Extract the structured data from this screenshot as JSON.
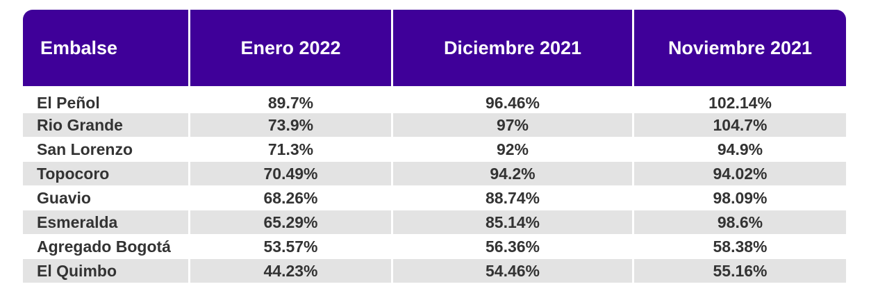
{
  "chart_data": {
    "type": "table",
    "columns": [
      "Embalse",
      "Enero 2022",
      "Diciembre 2021",
      "Noviembre 2021"
    ],
    "rows": [
      [
        "El Peñol",
        "89.7%",
        "96.46%",
        "102.14%"
      ],
      [
        "Rio Grande",
        "73.9%",
        "97%",
        "104.7%"
      ],
      [
        "San Lorenzo",
        "71.3%",
        "92%",
        "94.9%"
      ],
      [
        "Topocoro",
        "70.49%",
        "94.2%",
        "94.02%"
      ],
      [
        "Guavio",
        "68.26%",
        "88.74%",
        "98.09%"
      ],
      [
        "Esmeralda",
        "65.29%",
        "85.14%",
        "98.6%"
      ],
      [
        "Agregado Bogotá",
        "53.57%",
        "56.36%",
        "58.38%"
      ],
      [
        "El Quimbo",
        "44.23%",
        "54.46%",
        "55.16%"
      ]
    ]
  },
  "colors": {
    "header_bg": "#3f0099",
    "header_text": "#ffffff",
    "row_alt_bg": "#e3e3e3",
    "body_text": "#333333"
  }
}
